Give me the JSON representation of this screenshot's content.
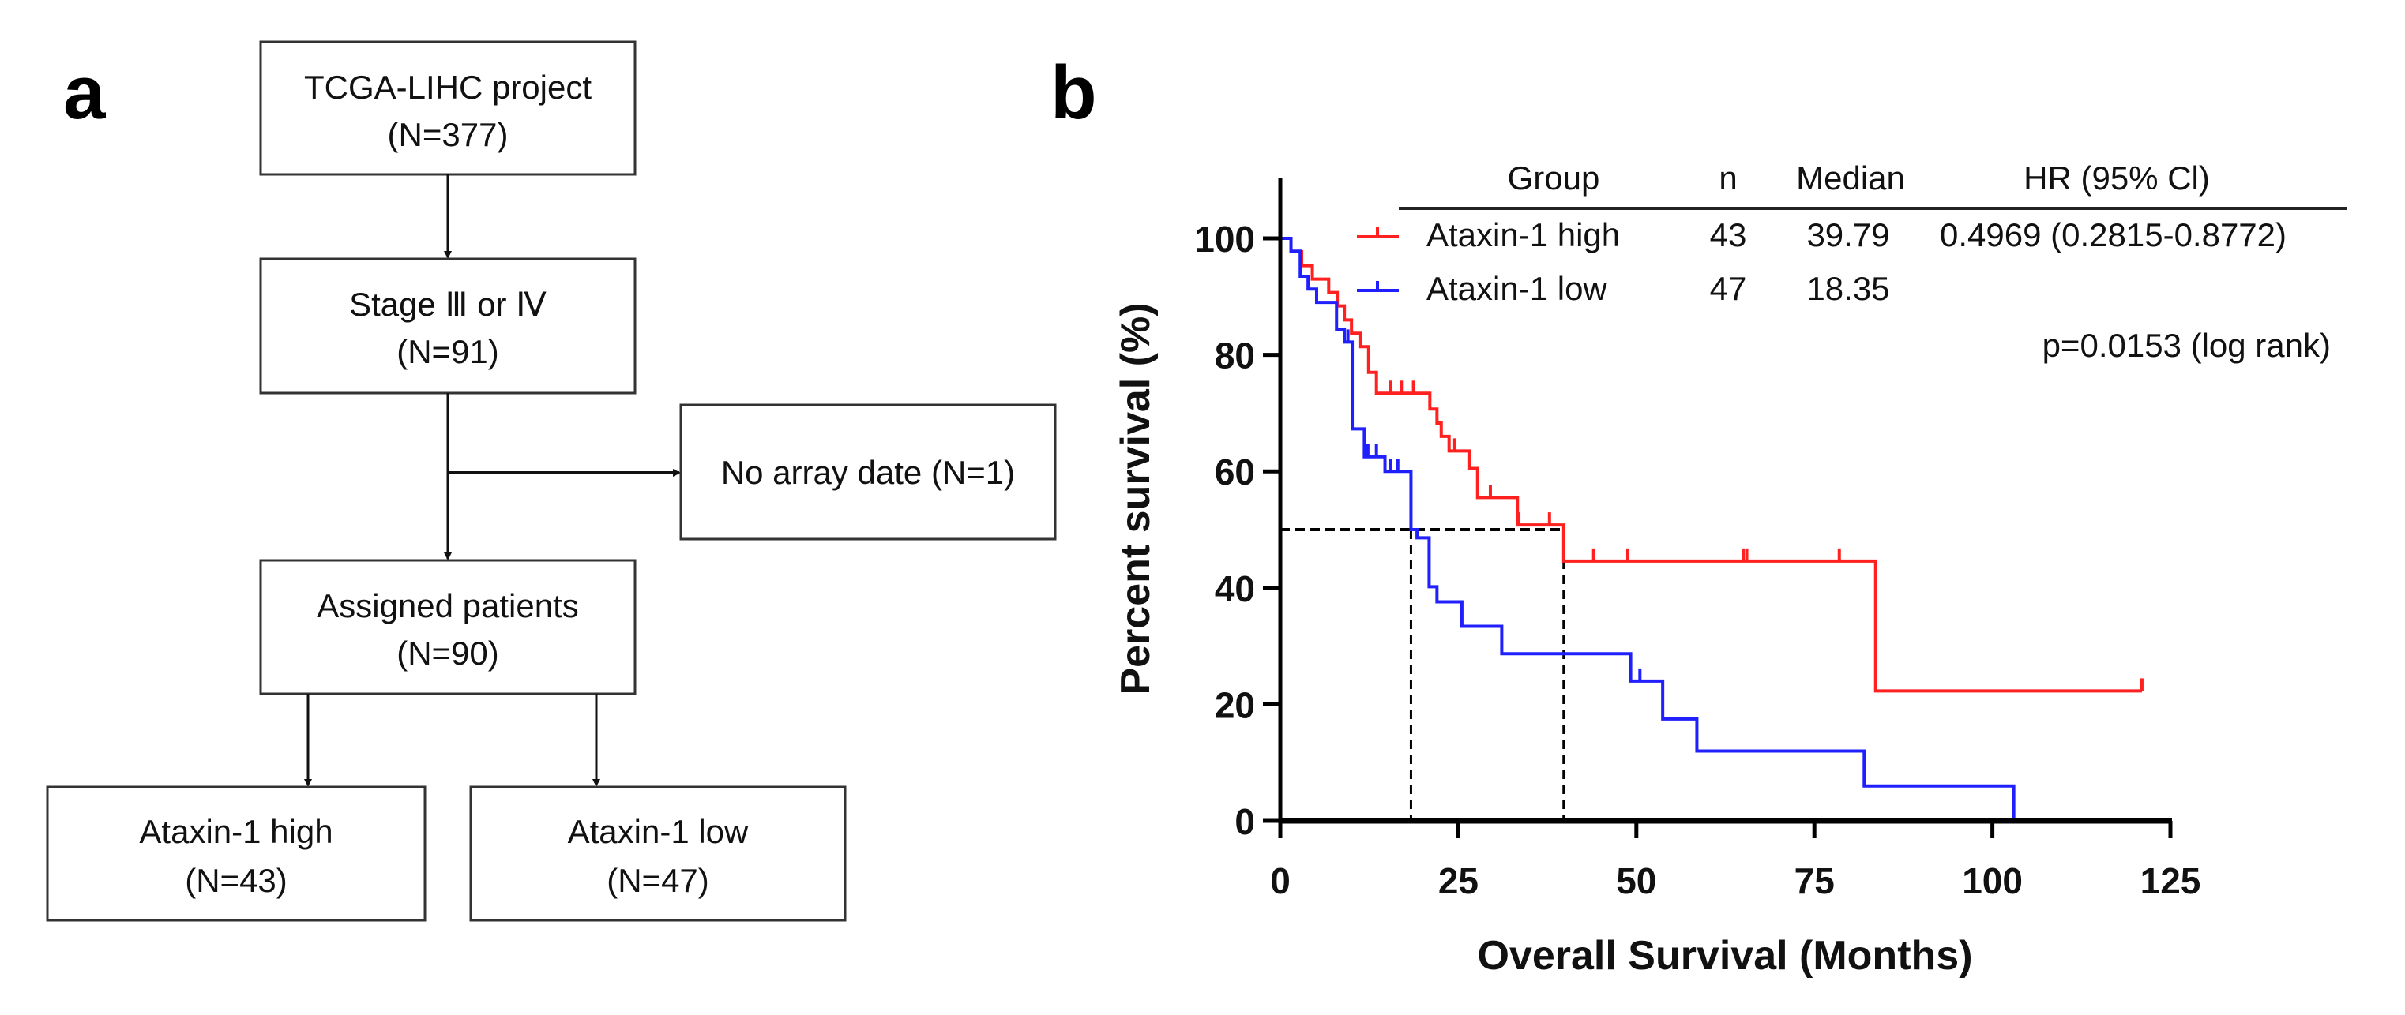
{
  "panel_a": {
    "label": "a",
    "boxes": [
      {
        "line1": "TCGA-LIHC project",
        "line2": "(N=377)"
      },
      {
        "line1": "Stage Ⅲ or Ⅳ",
        "line2": "(N=91)"
      },
      {
        "line1": "No array date (N=1)"
      },
      {
        "line1": "Assigned patients",
        "line2": "(N=90)"
      },
      {
        "line1": "Ataxin-1 high",
        "line2": "(N=43)"
      },
      {
        "line1": "Ataxin-1 low",
        "line2": "(N=47)"
      }
    ]
  },
  "panel_b": {
    "label": "b",
    "table": {
      "headers": [
        "Group",
        "n",
        "Median",
        "HR (95% Cl)"
      ],
      "rows": [
        {
          "group": "Ataxin-1 high",
          "n": "43",
          "median": "39.79",
          "hr": "0.4969 (0.2815-0.8772)"
        },
        {
          "group": "Ataxin-1 low",
          "n": "47",
          "median": "18.35",
          "hr": ""
        }
      ],
      "pvalue": "p=0.0153 (log rank)"
    }
  },
  "chart_data": {
    "type": "line",
    "subtype": "kaplan-meier",
    "xlabel": "Overall Survival (Months)",
    "ylabel": "Percent survival (%)",
    "xlim": [
      0,
      125
    ],
    "ylim": [
      0,
      100
    ],
    "xticks": [
      "0",
      "25",
      "50",
      "75",
      "100",
      "125"
    ],
    "yticks": [
      "0",
      "20",
      "40",
      "60",
      "80",
      "100"
    ],
    "grid": false,
    "medians": [
      18.35,
      39.79
    ],
    "series": [
      {
        "name": "Ataxin-1 high",
        "color": "#ff2020",
        "steps": [
          [
            0,
            100
          ],
          [
            1.5,
            97.7
          ],
          [
            3,
            95.3
          ],
          [
            4.5,
            93
          ],
          [
            6.8,
            90.7
          ],
          [
            8,
            88.4
          ],
          [
            9,
            86
          ],
          [
            10,
            83.7
          ],
          [
            11.3,
            81.4
          ],
          [
            12.4,
            77
          ],
          [
            13.5,
            73.4
          ],
          [
            21,
            70.7
          ],
          [
            22,
            68.3
          ],
          [
            22.6,
            66
          ],
          [
            23.7,
            63.5
          ],
          [
            26.6,
            60.5
          ],
          [
            27.7,
            55.5
          ],
          [
            33.3,
            50.8
          ],
          [
            39.8,
            44.6
          ],
          [
            83.6,
            22.3
          ],
          [
            121,
            22.3
          ]
        ],
        "censored": [
          [
            15.5,
            73.4
          ],
          [
            17,
            73.4
          ],
          [
            18.7,
            73.4
          ],
          [
            24.5,
            63.5
          ],
          [
            29.5,
            55.5
          ],
          [
            33.5,
            50.8
          ],
          [
            37.8,
            50.8
          ],
          [
            44,
            44.6
          ],
          [
            48.8,
            44.6
          ],
          [
            65,
            44.6
          ],
          [
            65.5,
            44.6
          ],
          [
            78.5,
            44.6
          ],
          [
            121,
            22.3
          ]
        ]
      },
      {
        "name": "Ataxin-1 low",
        "color": "#2020ff",
        "steps": [
          [
            0,
            100
          ],
          [
            1.5,
            97.8
          ],
          [
            2.8,
            93.5
          ],
          [
            3.9,
            91.3
          ],
          [
            5.1,
            89
          ],
          [
            7.9,
            84.4
          ],
          [
            9,
            82.2
          ],
          [
            10.1,
            67.3
          ],
          [
            11.8,
            62.5
          ],
          [
            14.7,
            60
          ],
          [
            18.35,
            50
          ],
          [
            19.2,
            48.6
          ],
          [
            20.9,
            40.2
          ],
          [
            22,
            37.6
          ],
          [
            25.5,
            33.4
          ],
          [
            31.1,
            28.7
          ],
          [
            49.2,
            24
          ],
          [
            53.7,
            17.5
          ],
          [
            58.5,
            12
          ],
          [
            82,
            6
          ],
          [
            103,
            0
          ]
        ],
        "censored": [
          [
            9.5,
            82.2
          ],
          [
            12.3,
            62.5
          ],
          [
            13.5,
            62.5
          ],
          [
            15.5,
            60
          ],
          [
            16.5,
            60
          ],
          [
            50.5,
            24
          ]
        ]
      }
    ]
  }
}
